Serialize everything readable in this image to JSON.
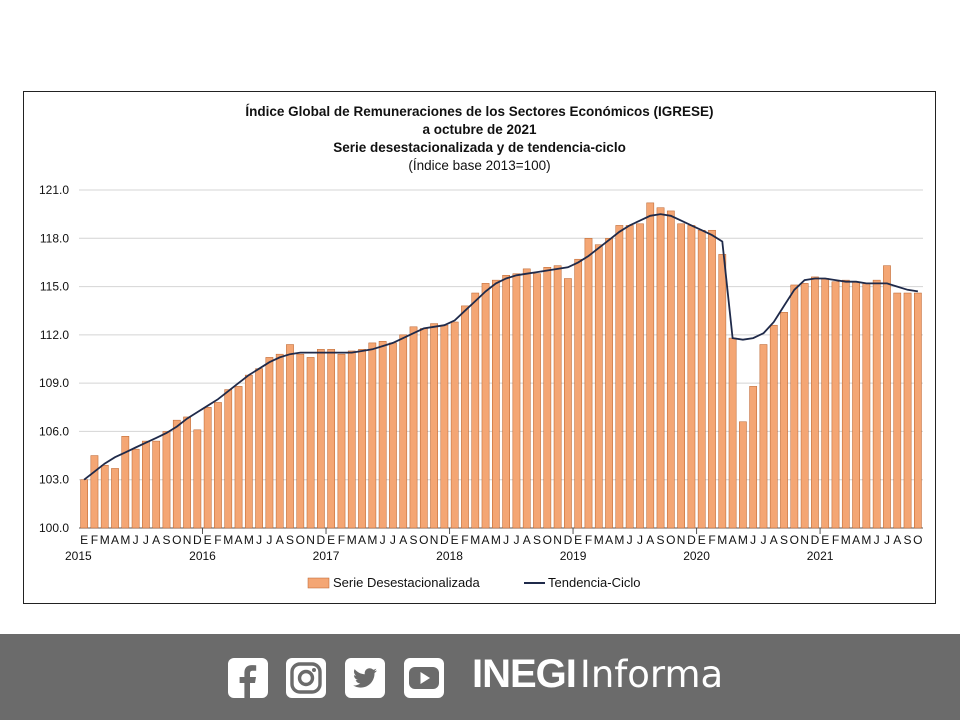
{
  "chart_data": {
    "type": "bar+line",
    "title_lines": [
      "Índice Global de Remuneraciones de los Sectores Económicos (IGRESE)",
      "a octubre de 2021",
      "Serie desestacionalizada y de tendencia-ciclo",
      "(Índice base 2013=100)"
    ],
    "ylim": [
      100,
      121
    ],
    "yticks": [
      "100.0",
      "103.0",
      "106.0",
      "109.0",
      "112.0",
      "115.0",
      "118.0",
      "121.0"
    ],
    "month_letters": [
      "E",
      "F",
      "M",
      "A",
      "M",
      "J",
      "J",
      "A",
      "S",
      "O",
      "N",
      "D"
    ],
    "years": [
      "2015",
      "2016",
      "2017",
      "2018",
      "2019",
      "2020",
      "2021"
    ],
    "series": [
      {
        "name": "Serie Desestacionalizada",
        "color": "#f4a674",
        "values": [
          103.0,
          104.5,
          103.9,
          103.7,
          105.7,
          104.9,
          105.4,
          105.4,
          106.0,
          106.7,
          106.9,
          106.1,
          107.5,
          107.8,
          108.6,
          108.8,
          109.5,
          109.9,
          110.6,
          110.8,
          111.4,
          110.8,
          110.6,
          111.1,
          111.1,
          110.8,
          111.0,
          111.1,
          111.5,
          111.6,
          111.5,
          112.0,
          112.5,
          112.4,
          112.7,
          112.6,
          112.8,
          113.8,
          114.6,
          115.2,
          115.4,
          115.7,
          115.8,
          116.1,
          115.8,
          116.2,
          116.3,
          115.5,
          116.7,
          118.0,
          117.6,
          118.0,
          118.8,
          118.8,
          118.9,
          120.2,
          119.9,
          119.7,
          118.9,
          118.8,
          118.5,
          118.5,
          117.0,
          111.8,
          106.6,
          108.8,
          111.4,
          112.6,
          113.4,
          115.1,
          115.2,
          115.6,
          115.5,
          115.3,
          115.4,
          115.3,
          115.2,
          115.4,
          116.3,
          114.6,
          114.6,
          114.6
        ]
      },
      {
        "name": "Tendencia-Ciclo",
        "color": "#1f2a4a",
        "values": [
          103.0,
          103.5,
          104.0,
          104.4,
          104.7,
          105.0,
          105.3,
          105.6,
          105.9,
          106.3,
          106.8,
          107.2,
          107.6,
          108.0,
          108.5,
          109.0,
          109.5,
          109.9,
          110.3,
          110.6,
          110.8,
          110.9,
          110.9,
          110.9,
          110.9,
          110.9,
          110.9,
          111.0,
          111.1,
          111.3,
          111.5,
          111.8,
          112.1,
          112.4,
          112.5,
          112.6,
          112.9,
          113.5,
          114.1,
          114.7,
          115.2,
          115.5,
          115.7,
          115.8,
          115.9,
          116.0,
          116.1,
          116.2,
          116.5,
          116.9,
          117.4,
          117.9,
          118.4,
          118.8,
          119.1,
          119.4,
          119.5,
          119.4,
          119.1,
          118.8,
          118.5,
          118.2,
          117.8,
          111.8,
          111.7,
          111.8,
          112.1,
          112.8,
          113.8,
          114.8,
          115.4,
          115.5,
          115.5,
          115.4,
          115.3,
          115.3,
          115.2,
          115.2,
          115.2,
          115.0,
          114.8,
          114.7
        ]
      }
    ],
    "legend_position": "bottom"
  },
  "footer": {
    "brand_bold": "INEGI",
    "brand_light": "Informa",
    "icons": [
      "facebook-icon",
      "instagram-icon",
      "twitter-icon",
      "youtube-icon"
    ],
    "background": "#6b6b6b"
  }
}
